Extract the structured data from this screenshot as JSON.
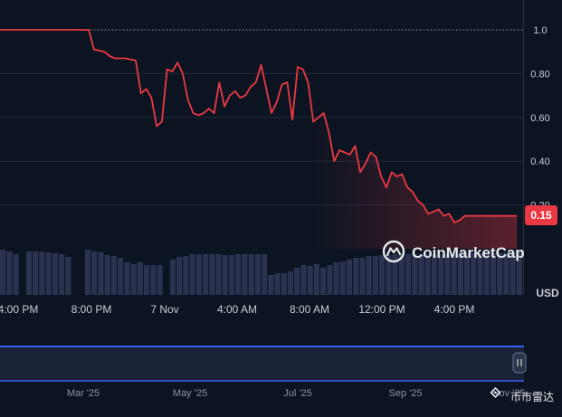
{
  "colors": {
    "background": "#0d1421",
    "price_line": "#ea3943",
    "volume_bar": "#2a3350",
    "grid": "#222a3a",
    "axis_text": "#c8ccd4",
    "badge_bg": "#ea3943",
    "navigator_fill": "#1a2238",
    "navigator_border": "#3861fb"
  },
  "watermark": {
    "brand": "CoinMarketCap",
    "icon": "coinmarketcap-logo-icon"
  },
  "corner_watermark": {
    "text": "币市雷达",
    "icon": "binance-square-logo-icon"
  },
  "price_badge": "0.15",
  "volume_axis_label": "USD",
  "x_ticks": [
    "4:00 PM",
    "8:00 PM",
    "7 Nov",
    "4:00 AM",
    "8:00 AM",
    "12:00 PM",
    "4:00 PM"
  ],
  "navigator": {
    "months": [
      "Mar '25",
      "May '25",
      "Jul '25",
      "Sep '25",
      "Nov '25"
    ],
    "handle_icon": "pause-handle-icon"
  },
  "chart_data": {
    "type": "line",
    "y_ticks": [
      "1.0",
      "0.80",
      "0.60",
      "0.40",
      "0.20"
    ],
    "ylim": [
      0.0,
      1.15
    ],
    "xlim": [
      0,
      100
    ],
    "grid": true,
    "series": [
      {
        "x": [
          0,
          17,
          18,
          20,
          21,
          22,
          23,
          24,
          26,
          27,
          28,
          29,
          30,
          31,
          32,
          33,
          34,
          35,
          36,
          37,
          38,
          39,
          40,
          41,
          42,
          43,
          44,
          45,
          46,
          47,
          48,
          49,
          50,
          51,
          52,
          53,
          54,
          55,
          56,
          57,
          58,
          59,
          60,
          61,
          62,
          63,
          64,
          65,
          66,
          67,
          68,
          69,
          70,
          71,
          72,
          73,
          74,
          75,
          76,
          77,
          78,
          79,
          80,
          81,
          82,
          83,
          84,
          85,
          86,
          87,
          88,
          89,
          90,
          91,
          92,
          93,
          94,
          95,
          96,
          97,
          98,
          99
        ],
        "values": [
          1.0,
          1.0,
          0.91,
          0.9,
          0.88,
          0.87,
          0.87,
          0.87,
          0.86,
          0.71,
          0.73,
          0.69,
          0.56,
          0.58,
          0.82,
          0.81,
          0.85,
          0.8,
          0.68,
          0.62,
          0.61,
          0.62,
          0.64,
          0.62,
          0.76,
          0.65,
          0.7,
          0.72,
          0.69,
          0.7,
          0.74,
          0.76,
          0.84,
          0.73,
          0.62,
          0.67,
          0.75,
          0.76,
          0.59,
          0.83,
          0.82,
          0.76,
          0.58,
          0.6,
          0.62,
          0.53,
          0.4,
          0.45,
          0.44,
          0.43,
          0.47,
          0.35,
          0.39,
          0.44,
          0.42,
          0.33,
          0.28,
          0.35,
          0.33,
          0.34,
          0.28,
          0.26,
          0.22,
          0.2,
          0.16,
          0.17,
          0.18,
          0.15,
          0.16,
          0.12,
          0.13,
          0.15,
          0.15,
          0.15,
          0.15,
          0.15,
          0.15,
          0.15,
          0.15,
          0.15,
          0.15,
          0.15
        ]
      }
    ],
    "volume": [
      0.5,
      0.48,
      0.45,
      0.0,
      0.48,
      0.48,
      0.48,
      0.47,
      0.46,
      0.45,
      0.42,
      0.0,
      0.0,
      0.5,
      0.48,
      0.47,
      0.44,
      0.43,
      0.41,
      0.36,
      0.34,
      0.36,
      0.33,
      0.33,
      0.33,
      0.0,
      0.39,
      0.42,
      0.43,
      0.45,
      0.45,
      0.45,
      0.45,
      0.45,
      0.44,
      0.44,
      0.45,
      0.45,
      0.45,
      0.45,
      0.45,
      0.22,
      0.24,
      0.24,
      0.26,
      0.3,
      0.33,
      0.32,
      0.34,
      0.3,
      0.33,
      0.36,
      0.37,
      0.39,
      0.41,
      0.41,
      0.43,
      0.43,
      0.44,
      0.44,
      0.45,
      0.45,
      0.45,
      0.45,
      0.45,
      0.45,
      0.45,
      0.45,
      0.45,
      0.46,
      0.46,
      0.46,
      0.46,
      0.46,
      0.46,
      0.46,
      0.47,
      0.47,
      0.47,
      0.48
    ]
  }
}
